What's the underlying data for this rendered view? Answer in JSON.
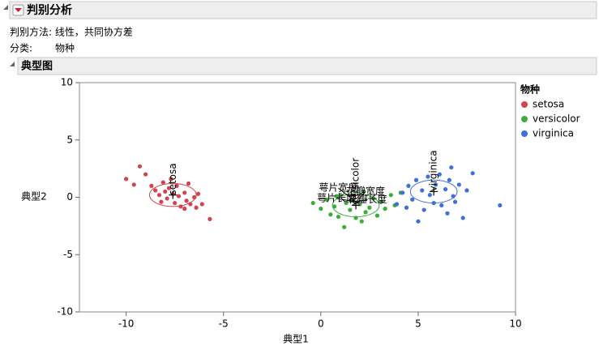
{
  "header": {
    "title": "判别分析",
    "method_label": "判别方法: 线性，共同协方差",
    "class_label": "分类:",
    "class_value": "物种"
  },
  "section": {
    "title": "典型图"
  },
  "chart_data": {
    "type": "scatter",
    "xlabel": "典型1",
    "ylabel": "典型2",
    "legend_title": "物种",
    "legend": "right",
    "xlim": [
      -12.4,
      10
    ],
    "ylim": [
      -10,
      10
    ],
    "xticks": [
      -10,
      -5,
      0,
      5,
      10
    ],
    "yticks": [
      -10,
      -5,
      0,
      5,
      10
    ],
    "series": [
      {
        "name": "setosa",
        "color": "#d04350",
        "center": [
          -7.6,
          0.2
        ],
        "radius": [
          1.2,
          1.0
        ],
        "x": [
          -10,
          -9.3,
          -9.6,
          -9,
          -8.7,
          -8.5,
          -8.3,
          -8.1,
          -8,
          -7.9,
          -7.8,
          -7.6,
          -7.5,
          -7.4,
          -7.3,
          -7.2,
          -7,
          -6.9,
          -6.8,
          -6.7,
          -6.5,
          -6.4,
          -6.3,
          -6.1,
          -5.7,
          -8.2,
          -7.7,
          -7
        ],
        "y": [
          1.6,
          2.7,
          1.1,
          2,
          1,
          0.6,
          0.2,
          1.3,
          0.5,
          -0.1,
          0.8,
          0.3,
          -0.5,
          1,
          0.1,
          -0.8,
          0.4,
          -0.3,
          1.2,
          -0.6,
          0,
          -0.9,
          0.3,
          -0.6,
          -1.9,
          -0.4,
          1.6,
          -1
        ]
      },
      {
        "name": "versicolor",
        "color": "#3aad3a",
        "center": [
          1.8,
          -0.7
        ],
        "radius": [
          1.2,
          1.0
        ],
        "x": [
          -0.4,
          0,
          0.3,
          0.5,
          0.7,
          0.9,
          1,
          1.2,
          1.3,
          1.5,
          1.6,
          1.8,
          2,
          2.2,
          2.3,
          2.5,
          2.7,
          2.9,
          3.1,
          3.3,
          3.6,
          3.8,
          2.1,
          0.8,
          4.1
        ],
        "y": [
          -0.5,
          -1,
          -0.2,
          -1.5,
          -0.8,
          -1.7,
          0.2,
          -2.6,
          -0.5,
          -1.1,
          -0.3,
          -1.8,
          -0.6,
          0.5,
          -1.3,
          -0.9,
          -0.1,
          -1.6,
          -0.4,
          -1,
          0.2,
          -0.7,
          -2.1,
          0.1,
          0.4
        ]
      },
      {
        "name": "virginica",
        "color": "#3f6fd8",
        "center": [
          5.8,
          0.5
        ],
        "radius": [
          1.2,
          1.0
        ],
        "x": [
          3.9,
          4.2,
          4.4,
          4.5,
          4.7,
          4.9,
          5,
          5.2,
          5.3,
          5.5,
          5.6,
          5.8,
          5.9,
          6.1,
          6.2,
          6.4,
          6.5,
          6.6,
          6.8,
          6.9,
          7.1,
          7.3,
          7.5,
          7.8,
          9.2,
          6.7
        ],
        "y": [
          -0.6,
          0.4,
          -0.9,
          1,
          -0.2,
          1.5,
          -2.1,
          0.6,
          -1.1,
          1.8,
          0.2,
          -0.5,
          1.1,
          2,
          -0.7,
          0.7,
          -1.4,
          1.5,
          0.1,
          -0.4,
          1.1,
          -1.8,
          0.6,
          2.1,
          -0.7,
          2.6
        ]
      }
    ],
    "ray_origin": [
      1.8,
      -0.4
    ],
    "rays": [
      {
        "label": "萼片宽度",
        "x": 0.9,
        "y": 0.8
      },
      {
        "label": "花瓣宽度",
        "x": 2.3,
        "y": 0.5
      },
      {
        "label": "萼片长度",
        "x": 0.8,
        "y": -0.1
      },
      {
        "label": "花瓣长度",
        "x": 2.4,
        "y": -0.2
      }
    ]
  }
}
